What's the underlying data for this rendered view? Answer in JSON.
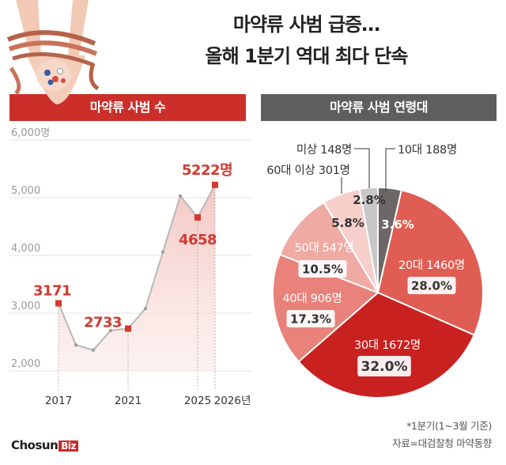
{
  "headline": {
    "line1": "마약류 사범 급증…",
    "line2": "올해 1분기 역대 최다 단속"
  },
  "colors": {
    "line_red": "#d23a32",
    "banner_red": "#cc2f2a",
    "banner_gray": "#5e5e5e",
    "area_fill": "#f6d3d1",
    "gray_line": "#bdbdbd"
  },
  "chart_data": [
    {
      "type": "line",
      "title": "마약류 사범 수",
      "x": [
        2017,
        2018,
        2019,
        2020,
        2021,
        2022,
        2023,
        2024,
        2025,
        2026
      ],
      "y": [
        3171,
        2450,
        2360,
        2700,
        2733,
        3080,
        4060,
        5030,
        4658,
        5222
      ],
      "xticks": [
        "2017",
        "2021",
        "2025",
        "2026년"
      ],
      "yticks": [
        "2,000",
        "3,000",
        "4,000",
        "5,000",
        "6,000명"
      ],
      "ylim": [
        2000,
        6000
      ],
      "labels": [
        "3171",
        "2733",
        "4658",
        "5222명"
      ],
      "grid": true
    },
    {
      "type": "pie",
      "title": "마약류 사범 연령대",
      "slices": [
        {
          "name": "10대",
          "count": "188명",
          "value": 3.6,
          "pct": "3.6%",
          "color": "#6c6766"
        },
        {
          "name": "20대",
          "count": "1460명",
          "value": 28.0,
          "pct": "28.0%",
          "color": "#df5d52"
        },
        {
          "name": "30대",
          "count": "1672명",
          "value": 32.0,
          "pct": "32.0%",
          "color": "#c9211f"
        },
        {
          "name": "40대",
          "count": "906명",
          "value": 17.3,
          "pct": "17.3%",
          "color": "#e8827a"
        },
        {
          "name": "50대",
          "count": "547명",
          "value": 10.5,
          "pct": "10.5%",
          "color": "#f0aaa4"
        },
        {
          "name": "60대 이상",
          "count": "301명",
          "value": 5.8,
          "pct": "5.8%",
          "color": "#f6cfcb"
        },
        {
          "name": "미상",
          "count": "148명",
          "value": 2.8,
          "pct": "2.8%",
          "color": "#c7c7c7"
        }
      ]
    }
  ],
  "footnotes": {
    "note": "*1분기(1~3월 기준)",
    "source": "자료=대검찰청 마약동향"
  },
  "brand": {
    "name": "Chosun",
    "suffix": "Biz"
  }
}
